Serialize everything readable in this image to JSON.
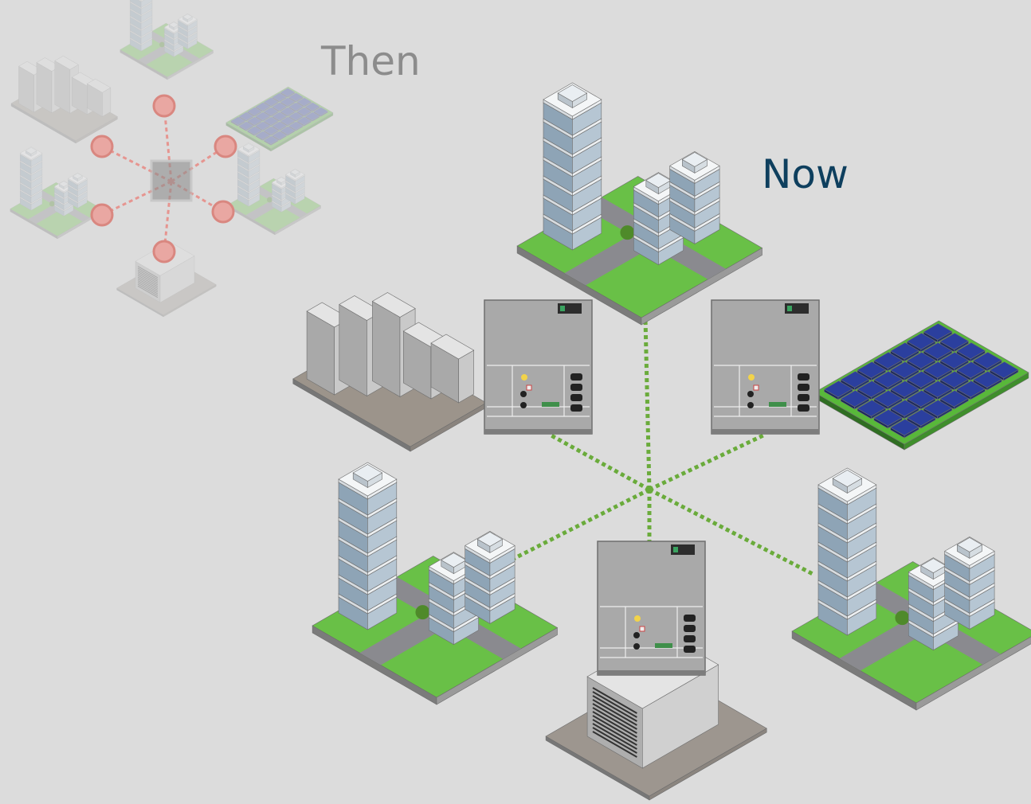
{
  "labels": {
    "then": "Then",
    "now": "Now"
  }
}
